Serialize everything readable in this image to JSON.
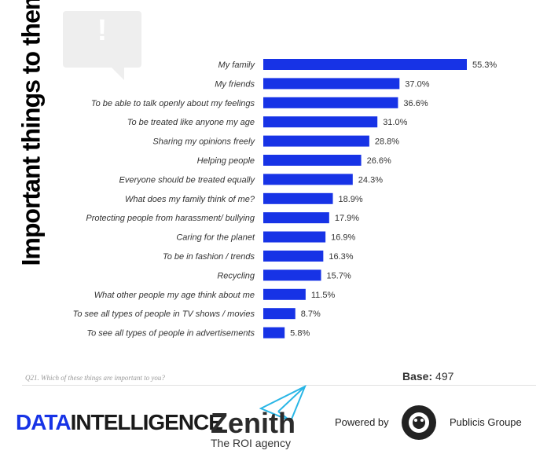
{
  "page": {
    "side_title": "Important things to them",
    "question": "Q21. Which of these things are important to you?",
    "base_label": "Base:",
    "base_value": "497"
  },
  "logos": {
    "data_intelligence_prefix": "DATA",
    "data_intelligence_suffix": "INTELLIGENCE",
    "zenith": "Zenith",
    "zenith_tagline": "The ROI agency",
    "powered_by": "Powered by",
    "publicis": "Publicis Groupe"
  },
  "colors": {
    "bar": "#1733e6",
    "speech_bubble": "#eeeeee"
  },
  "chart_data": {
    "type": "bar",
    "orientation": "horizontal",
    "categories": [
      "My family",
      "My friends",
      "To be able to talk openly about my feelings",
      "To be treated like anyone my age",
      "Sharing my opinions freely",
      "Helping people",
      "Everyone should be treated equally",
      "What does my family think of me?",
      "Protecting people from harassment/ bullying",
      "Caring for the planet",
      "To be in fashion / trends",
      "Recycling",
      "What other people my age think about me",
      "To see all types of people in TV shows / movies",
      "To see all types of people in advertisements"
    ],
    "values": [
      55.3,
      37.0,
      36.6,
      31.0,
      28.8,
      26.6,
      24.3,
      18.9,
      17.9,
      16.9,
      16.3,
      15.7,
      11.5,
      8.7,
      5.8
    ],
    "value_labels": [
      "55.3%",
      "37.0%",
      "36.6%",
      "31.0%",
      "28.8%",
      "26.6%",
      "24.3%",
      "18.9%",
      "17.9%",
      "16.9%",
      "16.3%",
      "15.7%",
      "11.5%",
      "8.7%",
      "5.8%"
    ],
    "xlim": [
      0,
      55.3
    ],
    "grid": false,
    "legend": "none"
  }
}
